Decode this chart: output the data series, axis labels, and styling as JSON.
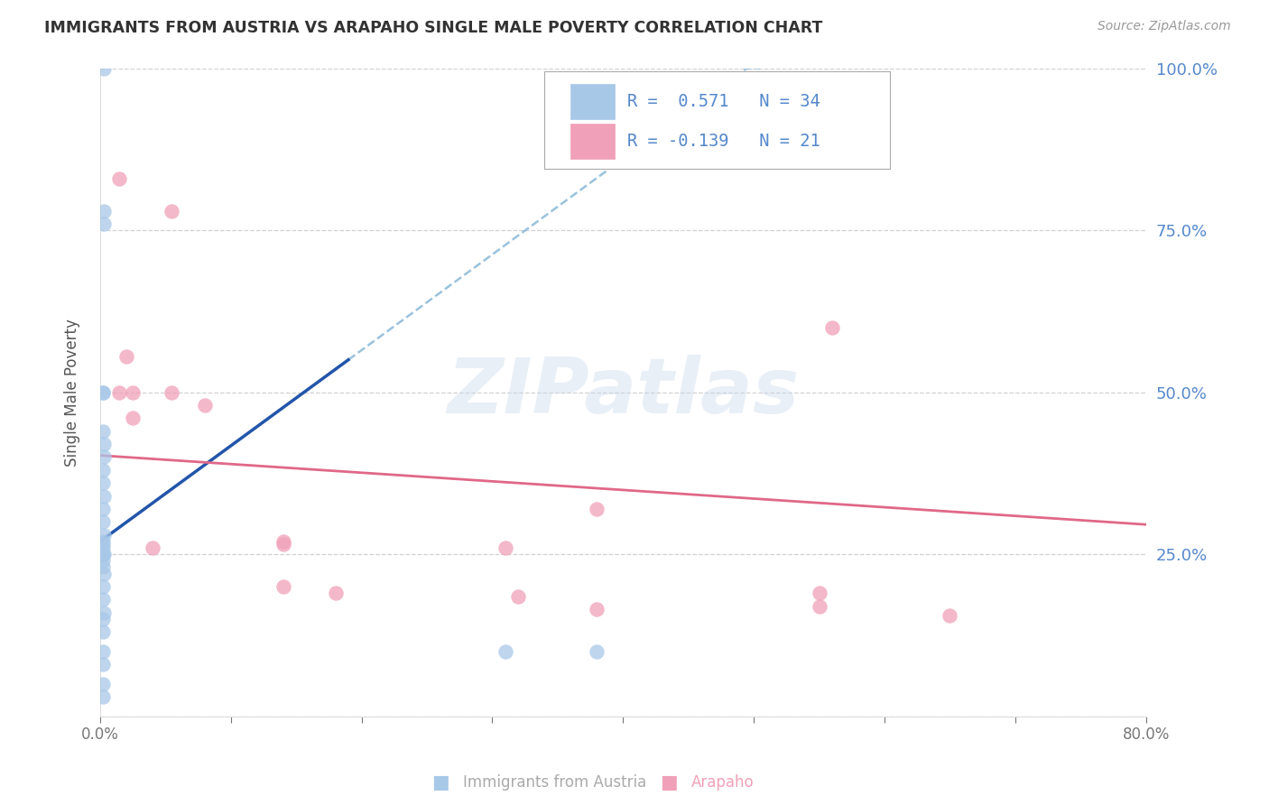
{
  "title": "IMMIGRANTS FROM AUSTRIA VS ARAPAHO SINGLE MALE POVERTY CORRELATION CHART",
  "source": "Source: ZipAtlas.com",
  "ylabel_left": "Single Male Poverty",
  "legend_label_1": "Immigrants from Austria",
  "legend_label_2": "Arapaho",
  "R1": 0.571,
  "N1": 34,
  "R2": -0.139,
  "N2": 21,
  "blue_scatter_color": "#a8c8e8",
  "blue_line_color": "#2255aa",
  "blue_dash_color": "#88b8d8",
  "pink_scatter_color": "#f0a0b8",
  "pink_line_color": "#e06888",
  "watermark_color": "#ccdcec",
  "right_tick_color": "#5588cc",
  "background_color": "#ffffff",
  "grid_color": "#cccccc",
  "blue_scatter_x": [
    0.003,
    0.003,
    0.002,
    0.002,
    0.002,
    0.003,
    0.003,
    0.002,
    0.002,
    0.003,
    0.002,
    0.002,
    0.003,
    0.002,
    0.002,
    0.002,
    0.003,
    0.002,
    0.002,
    0.002,
    0.002,
    0.003,
    0.002,
    0.002,
    0.003,
    0.002,
    0.002,
    0.002,
    0.002,
    0.002,
    0.31,
    0.38,
    0.002,
    0.003
  ],
  "blue_scatter_y": [
    1.0,
    0.76,
    0.5,
    0.5,
    0.44,
    0.42,
    0.4,
    0.38,
    0.36,
    0.34,
    0.32,
    0.3,
    0.28,
    0.27,
    0.265,
    0.26,
    0.25,
    0.25,
    0.25,
    0.24,
    0.23,
    0.22,
    0.2,
    0.18,
    0.16,
    0.15,
    0.13,
    0.1,
    0.08,
    0.05,
    0.1,
    0.1,
    0.03,
    0.78
  ],
  "pink_scatter_x": [
    0.015,
    0.055,
    0.02,
    0.025,
    0.015,
    0.055,
    0.08,
    0.025,
    0.14,
    0.14,
    0.14,
    0.56,
    0.65,
    0.55,
    0.18,
    0.55,
    0.04,
    0.38,
    0.31,
    0.32,
    0.38
  ],
  "pink_scatter_y": [
    0.83,
    0.78,
    0.555,
    0.5,
    0.5,
    0.5,
    0.48,
    0.46,
    0.27,
    0.265,
    0.2,
    0.6,
    0.155,
    0.17,
    0.19,
    0.19,
    0.26,
    0.32,
    0.26,
    0.185,
    0.165
  ],
  "xlim": [
    0,
    0.8
  ],
  "ylim": [
    0,
    1.0
  ],
  "right_yticks": [
    0.25,
    0.5,
    0.75,
    1.0
  ],
  "right_yticklabels": [
    "25.0%",
    "50.0%",
    "75.0%",
    "100.0%"
  ],
  "xtick_positions": [
    0.0,
    0.1,
    0.2,
    0.3,
    0.4,
    0.5,
    0.6,
    0.7,
    0.8
  ],
  "xtick_labels": [
    "0.0%",
    "",
    "",
    "",
    "",
    "",
    "",
    "",
    "80.0%"
  ]
}
